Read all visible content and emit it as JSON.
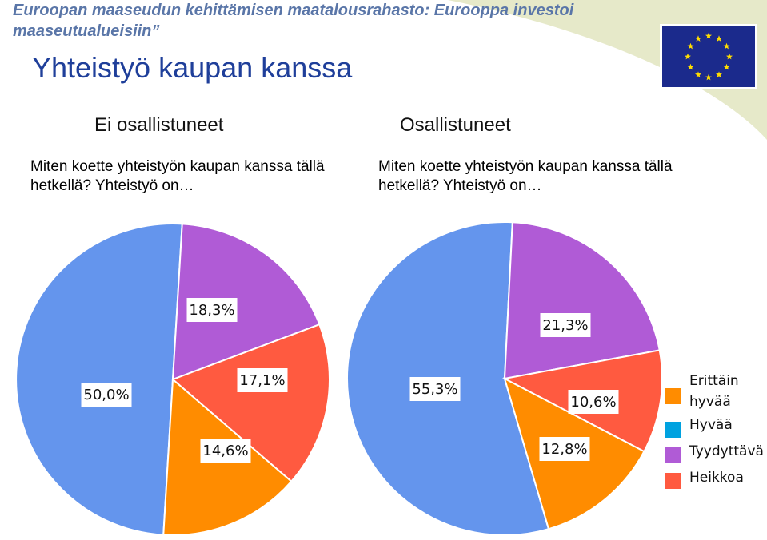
{
  "header": {
    "banner": "Euroopan maaseudun kehittämisen maatalousrahasto: Eurooppa investoi maaseutualueisiin”",
    "title": "Yhteistyö kaupan kanssa"
  },
  "groups": {
    "left_title": "Ei osallistuneet",
    "right_title": "Osallistuneet",
    "question": "Miten koette yhteistyön kaupan kanssa tällä hetkellä? Yhteistyö on…"
  },
  "colors": {
    "Erittäin hyvää": "#ff8c00",
    "Hyvää": "#00a2e0",
    "Tyydyttävä": "#b05bd6",
    "Heikkoa": "#ff5a40",
    "blue_slice": "#6495ed",
    "eu_blue": "#1b2a8c",
    "eu_star": "#ffdd00",
    "swoosh": "#e6e9c9"
  },
  "chart_data": [
    {
      "type": "pie",
      "group": "Ei osallistuneet",
      "slices": [
        {
          "category": "Hyvää",
          "value": 50.0,
          "label": "50,0%"
        },
        {
          "category": "Tyydyttävä",
          "value": 18.3,
          "label": "18,3%"
        },
        {
          "category": "Heikkoa",
          "value": 17.1,
          "label": "17,1%"
        },
        {
          "category": "Erittäin hyvää",
          "value": 14.6,
          "label": "14,6%"
        }
      ]
    },
    {
      "type": "pie",
      "group": "Osallistuneet",
      "slices": [
        {
          "category": "Hyvää",
          "value": 55.3,
          "label": "55,3%"
        },
        {
          "category": "Tyydyttävä",
          "value": 21.3,
          "label": "21,3%"
        },
        {
          "category": "Heikkoa",
          "value": 10.6,
          "label": "10,6%"
        },
        {
          "category": "Erittäin hyvää",
          "value": 12.8,
          "label": "12,8%"
        }
      ]
    }
  ],
  "legend": [
    {
      "category": "Erittäin hyvää",
      "lines": [
        "Erittäin",
        "hyvää"
      ]
    },
    {
      "category": "Hyvää",
      "lines": [
        "Hyvää"
      ]
    },
    {
      "category": "Tyydyttävä",
      "lines": [
        "Tyydyttävä"
      ]
    },
    {
      "category": "Heikkoa",
      "lines": [
        "Heikkoa"
      ]
    }
  ]
}
